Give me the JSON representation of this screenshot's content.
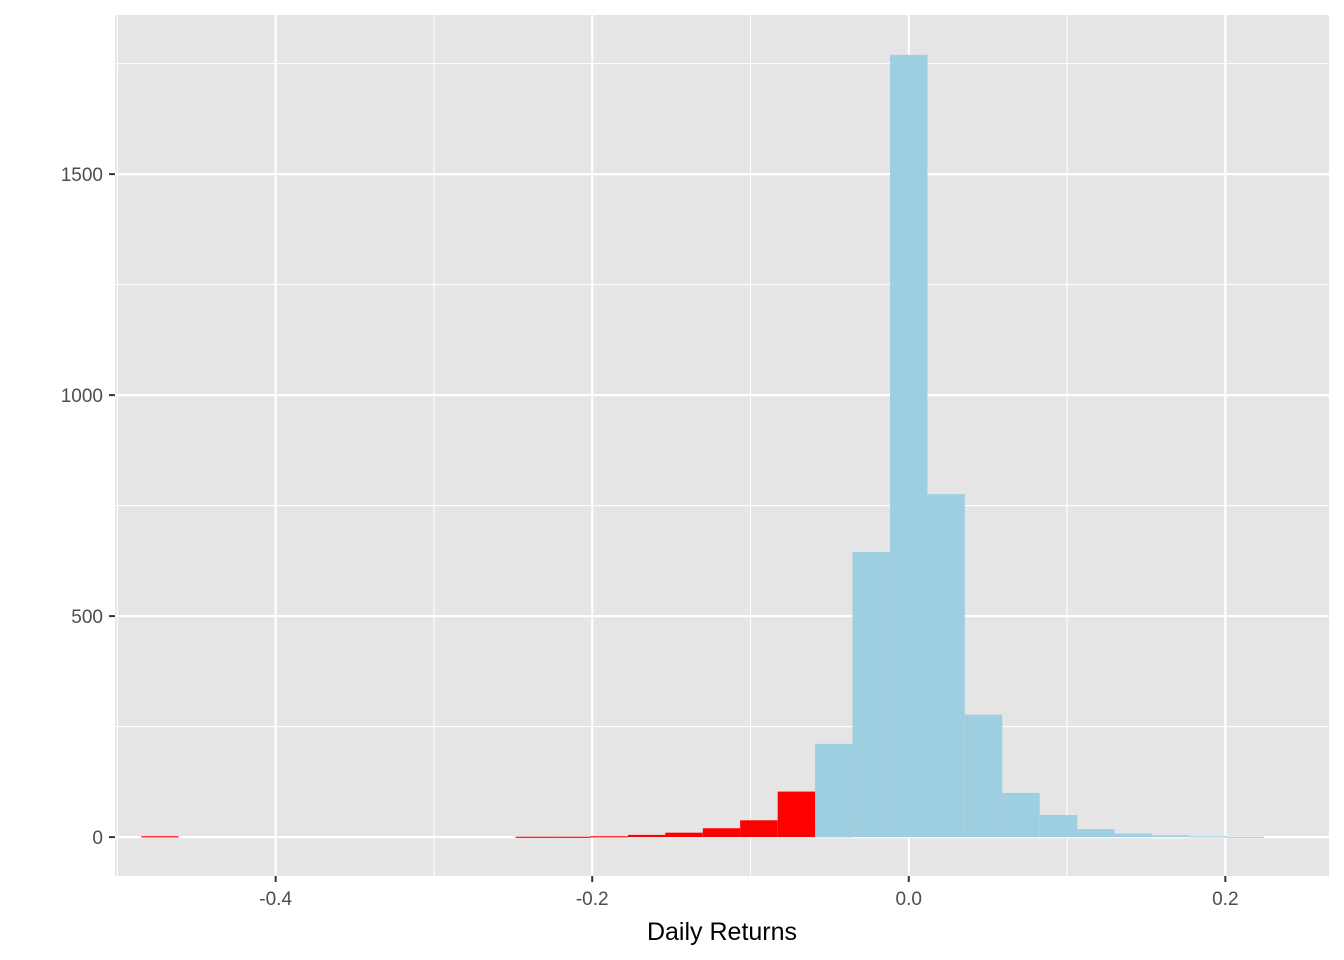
{
  "chart_data": {
    "type": "bar",
    "title": "",
    "xlabel": "Daily Returns",
    "ylabel": "",
    "xlim": [
      -0.5015,
      0.2655
    ],
    "ylim": [
      -88,
      1860
    ],
    "bin_width": 0.02365,
    "x_ticks": [
      -0.4,
      -0.2,
      0.0,
      0.2
    ],
    "x_tick_labels": [
      "-0.4",
      "-0.2",
      "0.0",
      "0.2"
    ],
    "x_minor_ticks": [
      -0.5,
      -0.3,
      -0.1,
      0.1
    ],
    "y_ticks": [
      0,
      500,
      1000,
      1500
    ],
    "y_tick_labels": [
      "0",
      "500",
      "1000",
      "1500"
    ],
    "y_minor_ticks": [
      250,
      750,
      1250,
      1750
    ],
    "grid": true,
    "colors": {
      "negative": "#FF0000",
      "positive": "#9ECFE1",
      "panel": "#E5E5E5",
      "grid": "#FFFFFF"
    },
    "series": [
      {
        "group": "negative",
        "bins": [
          {
            "x": -0.4731,
            "value": 2
          },
          {
            "x": -0.2366,
            "value": 1
          },
          {
            "x": -0.2129,
            "value": 1
          },
          {
            "x": -0.1893,
            "value": 2
          },
          {
            "x": -0.1656,
            "value": 5
          },
          {
            "x": -0.142,
            "value": 10
          },
          {
            "x": -0.1183,
            "value": 20
          },
          {
            "x": -0.0947,
            "value": 38
          },
          {
            "x": -0.071,
            "value": 103
          },
          {
            "x": -0.0474,
            "value": 24
          }
        ]
      },
      {
        "group": "positive",
        "bins": [
          {
            "x": -0.0474,
            "value": 211
          },
          {
            "x": -0.0237,
            "value": 645
          },
          {
            "x": 0.0,
            "value": 1770
          },
          {
            "x": 0.0236,
            "value": 776
          },
          {
            "x": 0.0473,
            "value": 277
          },
          {
            "x": 0.0709,
            "value": 100
          },
          {
            "x": 0.0946,
            "value": 50
          },
          {
            "x": 0.1182,
            "value": 18
          },
          {
            "x": 0.1419,
            "value": 8
          },
          {
            "x": 0.1655,
            "value": 4
          },
          {
            "x": 0.1892,
            "value": 2
          },
          {
            "x": 0.2128,
            "value": 1
          }
        ]
      }
    ]
  }
}
